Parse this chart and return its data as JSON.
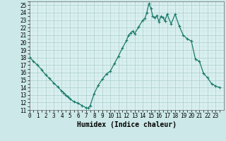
{
  "title": "",
  "xlabel": "Humidex (Indice chaleur)",
  "ylabel": "",
  "x_values": [
    0,
    0.5,
    1,
    1.5,
    2,
    2.5,
    3,
    3.5,
    4,
    4.25,
    4.5,
    4.75,
    5,
    5.5,
    6,
    6.5,
    7,
    7.25,
    7.5,
    8,
    8.5,
    9,
    9.5,
    10,
    10.5,
    11,
    11.5,
    12,
    12.25,
    12.5,
    12.75,
    13,
    13.5,
    14,
    14.25,
    14.5,
    14.75,
    15,
    15.25,
    15.5,
    15.75,
    16,
    16.25,
    16.5,
    16.75,
    17,
    17.5,
    18,
    18.5,
    19,
    19.5,
    20,
    20.5,
    21,
    21.5,
    22,
    22.5,
    23,
    23.5
  ],
  "y_values": [
    18.1,
    17.5,
    17.0,
    16.4,
    15.7,
    15.2,
    14.6,
    14.1,
    13.5,
    13.3,
    13.0,
    12.8,
    12.5,
    12.1,
    11.9,
    11.6,
    11.3,
    11.25,
    11.55,
    13.2,
    14.3,
    15.1,
    15.8,
    16.2,
    17.2,
    18.2,
    19.3,
    20.3,
    21.0,
    21.3,
    21.5,
    21.2,
    22.1,
    23.0,
    23.2,
    24.0,
    25.2,
    24.6,
    23.5,
    23.3,
    23.6,
    22.8,
    23.5,
    23.3,
    22.9,
    23.8,
    22.5,
    23.8,
    22.2,
    21.0,
    20.5,
    20.2,
    17.8,
    17.5,
    15.9,
    15.3,
    14.5,
    14.2,
    14.0
  ],
  "line_color": "#1a7a6a",
  "marker_color": "#1a7a6a",
  "bg_color": "#cce8e8",
  "grid_major_color": "#aacccc",
  "grid_minor_color": "#c0dede",
  "plot_bg": "#daf0f0",
  "xlim": [
    0,
    24
  ],
  "ylim": [
    11,
    25.5
  ],
  "yticks": [
    11,
    12,
    13,
    14,
    15,
    16,
    17,
    18,
    19,
    20,
    21,
    22,
    23,
    24,
    25
  ],
  "xticks": [
    0,
    1,
    2,
    3,
    4,
    5,
    6,
    7,
    8,
    9,
    10,
    11,
    12,
    13,
    14,
    15,
    16,
    17,
    18,
    19,
    20,
    21,
    22,
    23
  ],
  "xlabel_fontsize": 7,
  "tick_fontsize": 5.5,
  "marker_size": 2.5,
  "line_width": 0.9
}
